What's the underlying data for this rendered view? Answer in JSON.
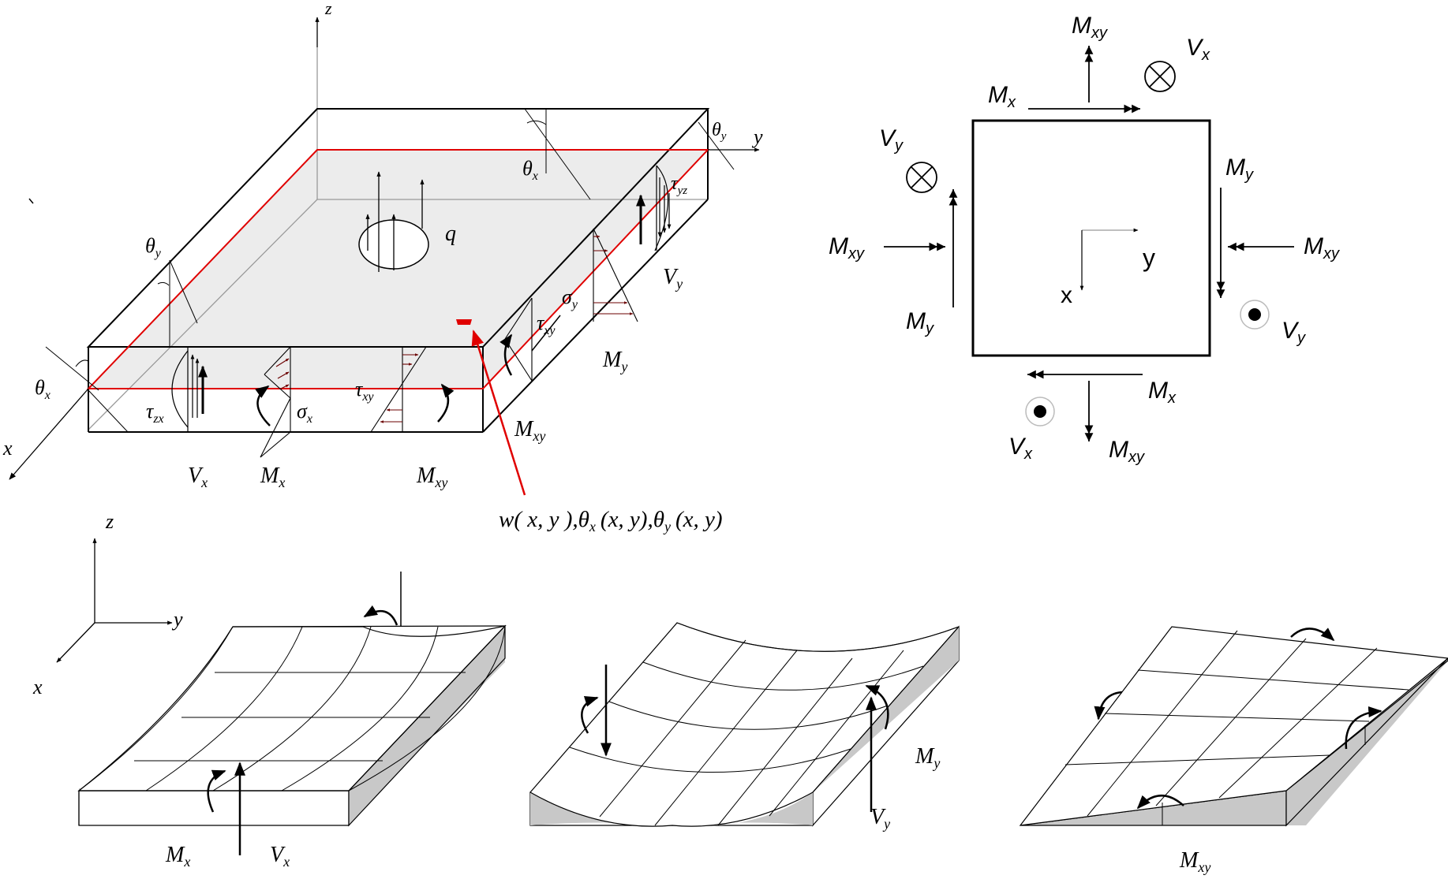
{
  "colors": {
    "ink": "#000000",
    "highlight": "#e00000",
    "shade": "#c8c8c8",
    "face": "#ececec"
  },
  "main_plate": {
    "axes": {
      "x": "x",
      "y": "y",
      "z": "z"
    },
    "load": "q",
    "theta_x_base": "θ",
    "theta_x_sub": "x",
    "theta_y_base": "θ",
    "theta_y_sub": "y",
    "tau_yz_base": "τ",
    "tau_yz_sub": "yz",
    "tau_xy_base": "τ",
    "tau_xy_sub": "xy",
    "tau_zx_base": "τ",
    "tau_zx_sub": "zx",
    "sigma_x_base": "σ",
    "sigma_x_sub": "x",
    "sigma_y_base": "σ",
    "sigma_y_sub": "y",
    "V_base": "V",
    "M_base": "M",
    "sub_x": "x",
    "sub_y": "y",
    "sub_xy": "xy",
    "dof_label": "w( x, y ), θ x (x, y), θ y (x, y)",
    "dof_w": "w( x, y ),",
    "dof_theta": "θ",
    "dof_sub_x": "x",
    "dof_sub_y": "y",
    "dof_args_1": "(x, y),",
    "dof_args_2": "(x, y)"
  },
  "element": {
    "axis_x": "x",
    "axis_y": "y",
    "M_base": "M",
    "V_base": "V",
    "sub_x": "x",
    "sub_y": "y",
    "sub_xy": "xy"
  },
  "bottom_panels": {
    "axes": {
      "x": "x",
      "y": "y",
      "z": "z"
    },
    "M_base": "M",
    "V_base": "V",
    "sub_x": "x",
    "sub_y": "y",
    "sub_xy": "xy"
  }
}
